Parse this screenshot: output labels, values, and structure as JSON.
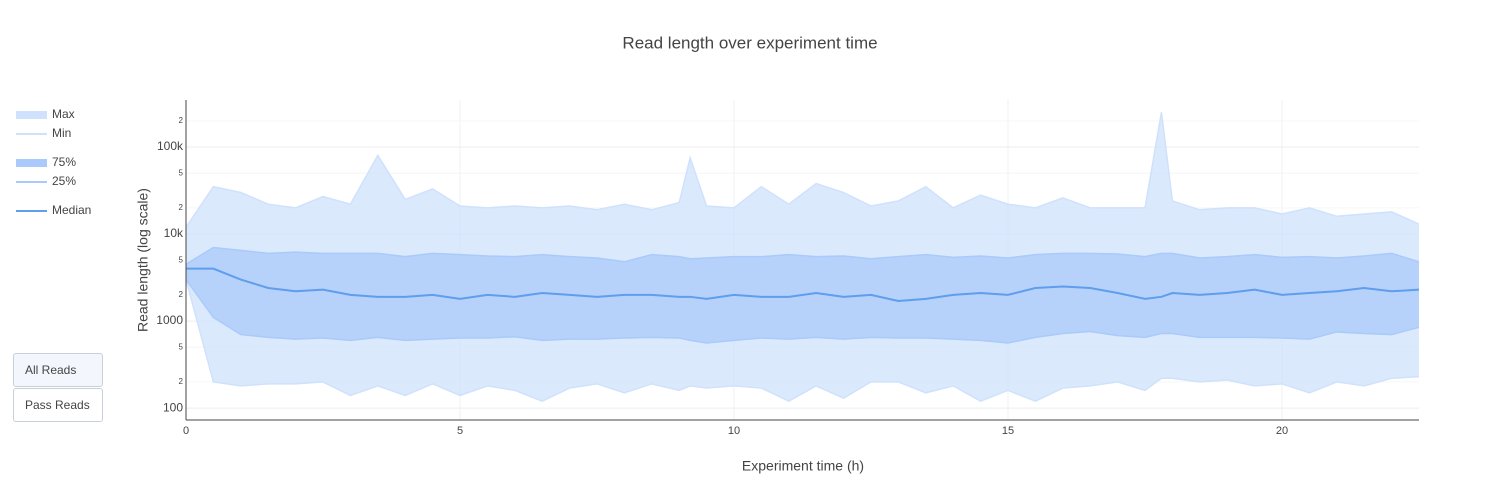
{
  "chart_data": {
    "type": "band",
    "title": "Read length over experiment time",
    "xlabel": "Experiment time (h)",
    "ylabel": "Read length (log scale)",
    "yscale": "log",
    "grid": true,
    "legend": "left",
    "xlim": [
      0,
      22.5
    ],
    "xticks": [
      0,
      5,
      10,
      15,
      20
    ],
    "ylim": [
      73,
      347000
    ],
    "yticks": [
      100,
      {
        "value": 200,
        "label": "2"
      },
      {
        "value": 500,
        "label": "5"
      },
      1000,
      {
        "value": 2000,
        "label": "2"
      },
      {
        "value": 5000,
        "label": "5"
      },
      {
        "value": 10000,
        "label": "10k"
      },
      {
        "value": 20000,
        "label": "2"
      },
      {
        "value": 50000,
        "label": "5"
      },
      {
        "value": 100000,
        "label": "100k"
      },
      {
        "value": 200000,
        "label": "2"
      }
    ],
    "x": [
      0,
      0.5,
      1,
      1.5,
      2,
      2.5,
      3,
      3.5,
      4,
      4.5,
      5,
      5.5,
      6,
      6.5,
      7,
      7.5,
      8,
      8.5,
      9,
      9.2,
      9.5,
      10,
      10.5,
      11,
      11.5,
      12,
      12.5,
      13,
      13.5,
      14,
      14.5,
      15,
      15.5,
      16,
      16.5,
      17,
      17.5,
      17.8,
      18,
      18.5,
      19,
      19.5,
      20,
      20.5,
      21,
      21.5,
      22,
      22.5
    ],
    "series": [
      {
        "name": "Max",
        "color": "#cfe1fc",
        "values": [
          12000,
          35000,
          30000,
          22000,
          20000,
          27000,
          22000,
          80000,
          25000,
          33000,
          21000,
          20000,
          21000,
          20000,
          21000,
          19000,
          22000,
          19000,
          23000,
          75000,
          21000,
          20000,
          35000,
          22000,
          38000,
          30000,
          21000,
          24000,
          35000,
          20000,
          28000,
          22000,
          20000,
          26000,
          20000,
          20000,
          20000,
          250000,
          24000,
          19000,
          20000,
          20000,
          17000,
          20000,
          16000,
          17000,
          18000,
          13000
        ]
      },
      {
        "name": "Min",
        "color": "#cfe1fc",
        "values": [
          3000,
          200,
          180,
          190,
          190,
          200,
          140,
          180,
          140,
          190,
          140,
          180,
          160,
          120,
          170,
          190,
          150,
          190,
          160,
          180,
          170,
          180,
          170,
          120,
          180,
          130,
          200,
          200,
          150,
          180,
          120,
          160,
          120,
          170,
          180,
          200,
          160,
          220,
          220,
          200,
          210,
          180,
          190,
          150,
          200,
          180,
          220,
          230
        ]
      },
      {
        "name": "75%",
        "color": "#a9cafa",
        "values": [
          4500,
          7000,
          6500,
          6000,
          6200,
          6000,
          6000,
          6000,
          5500,
          6000,
          5800,
          5600,
          5500,
          5800,
          5500,
          5300,
          4800,
          5800,
          5500,
          5200,
          5300,
          5500,
          5500,
          5800,
          5500,
          5600,
          5200,
          5500,
          5800,
          5400,
          5600,
          5300,
          5800,
          6000,
          6000,
          5900,
          5500,
          6000,
          6000,
          5300,
          5500,
          5800,
          5400,
          5500,
          5300,
          5600,
          6000,
          4800
        ]
      },
      {
        "name": "25%",
        "color": "#a9cafa",
        "values": [
          3000,
          1100,
          700,
          650,
          620,
          640,
          600,
          650,
          600,
          620,
          640,
          640,
          660,
          600,
          620,
          620,
          640,
          650,
          640,
          600,
          560,
          600,
          640,
          620,
          650,
          620,
          650,
          640,
          640,
          620,
          600,
          560,
          650,
          720,
          760,
          680,
          650,
          720,
          720,
          650,
          650,
          650,
          640,
          620,
          750,
          720,
          700,
          850
        ]
      },
      {
        "name": "Median",
        "color": "#5f9ded",
        "values": [
          4000,
          4000,
          3000,
          2400,
          2200,
          2300,
          2000,
          1900,
          1900,
          2000,
          1800,
          2000,
          1900,
          2100,
          2000,
          1900,
          2000,
          2000,
          1900,
          1900,
          1800,
          2000,
          1900,
          1900,
          2100,
          1900,
          2000,
          1700,
          1800,
          2000,
          2100,
          2000,
          2400,
          2500,
          2400,
          2100,
          1800,
          1900,
          2100,
          2000,
          2100,
          2300,
          2000,
          2100,
          2200,
          2400,
          2200,
          2300
        ]
      }
    ],
    "buttons": [
      "All Reads",
      "Pass Reads"
    ]
  }
}
